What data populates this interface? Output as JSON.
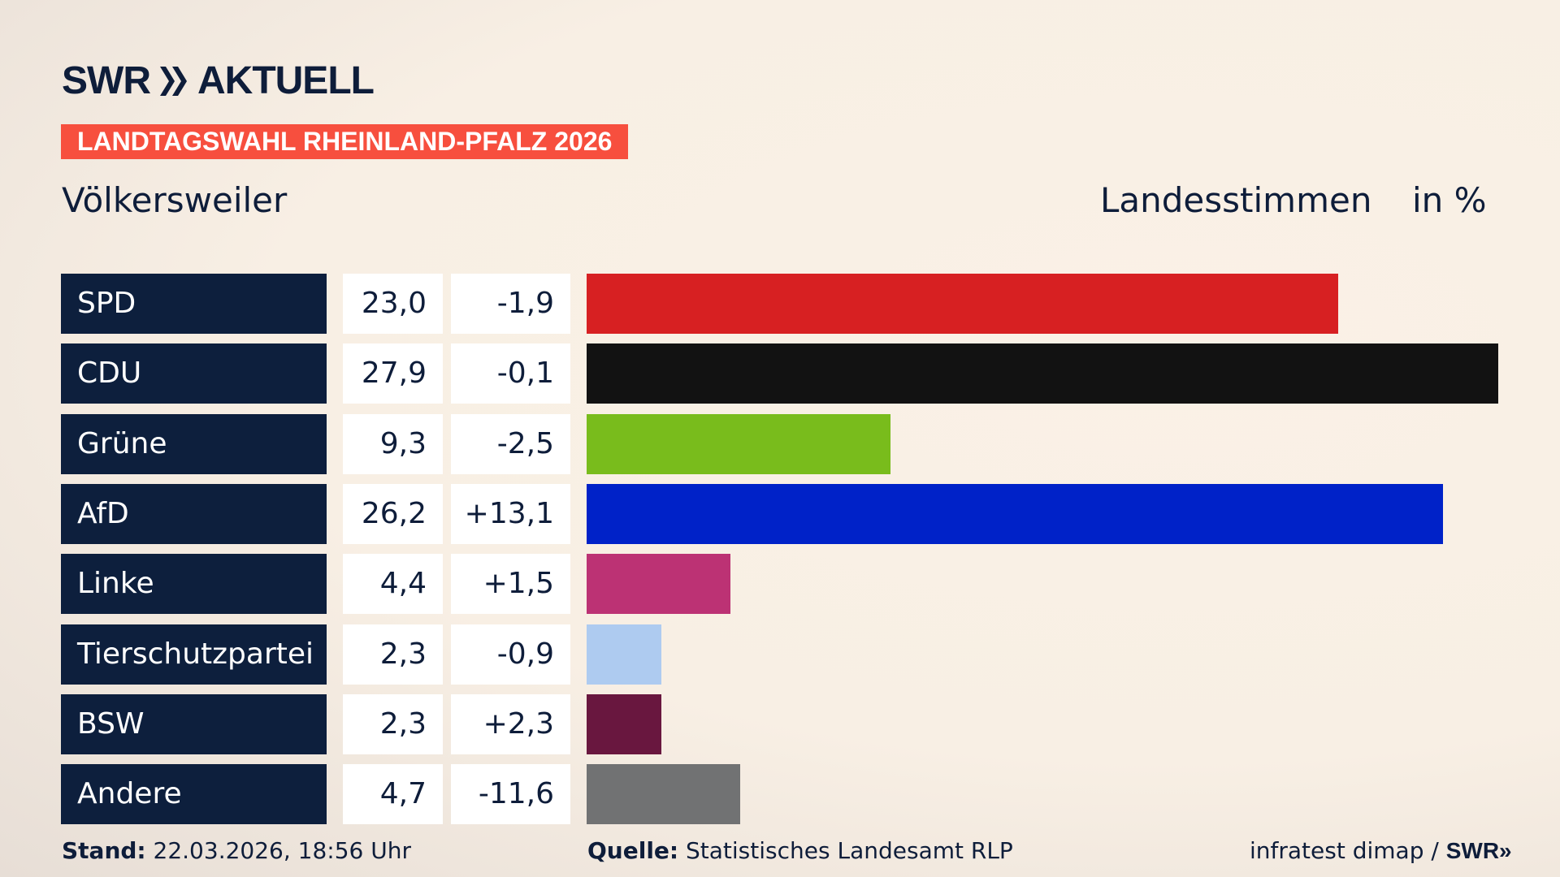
{
  "brand": {
    "logo": "SWR» AKTUELL",
    "logo_left": "SWR",
    "logo_right": "AKTUELL"
  },
  "banner": "LANDTAGSWAHL RHEINLAND-PFALZ 2026",
  "location": "Völkersweiler",
  "measure": "Landesstimmen",
  "unit": "in %",
  "footer": {
    "stand_label": "Stand:",
    "stand_value": "22.03.2026, 18:56 Uhr",
    "source_label": "Quelle:",
    "source_value": "Statistisches Landesamt RLP",
    "credit": "infratest dimap /",
    "credit_logo": "SWR»"
  },
  "chart_data": {
    "type": "bar",
    "orientation": "horizontal",
    "categories": [
      "SPD",
      "CDU",
      "Grüne",
      "AfD",
      "Linke",
      "Tierschutzpartei",
      "BSW",
      "Andere"
    ],
    "values": [
      23.0,
      27.9,
      9.3,
      26.2,
      4.4,
      2.3,
      2.3,
      4.7
    ],
    "value_labels": [
      "23,0",
      "27,9",
      "9,3",
      "26,2",
      "4,4",
      "2,3",
      "2,3",
      "4,7"
    ],
    "change_labels": [
      "-1,9",
      "-0,1",
      "-2,5",
      "+13,1",
      "+1,5",
      "-0,9",
      "+2,3",
      "-11,6"
    ],
    "changes": [
      -1.9,
      -0.1,
      -2.5,
      13.1,
      1.5,
      -0.9,
      2.3,
      -11.6
    ],
    "colors": [
      "#d72022",
      "#121212",
      "#79bc1c",
      "#0022c8",
      "#bc3274",
      "#aecbf0",
      "#69173f",
      "#717273"
    ],
    "grid": false
  }
}
